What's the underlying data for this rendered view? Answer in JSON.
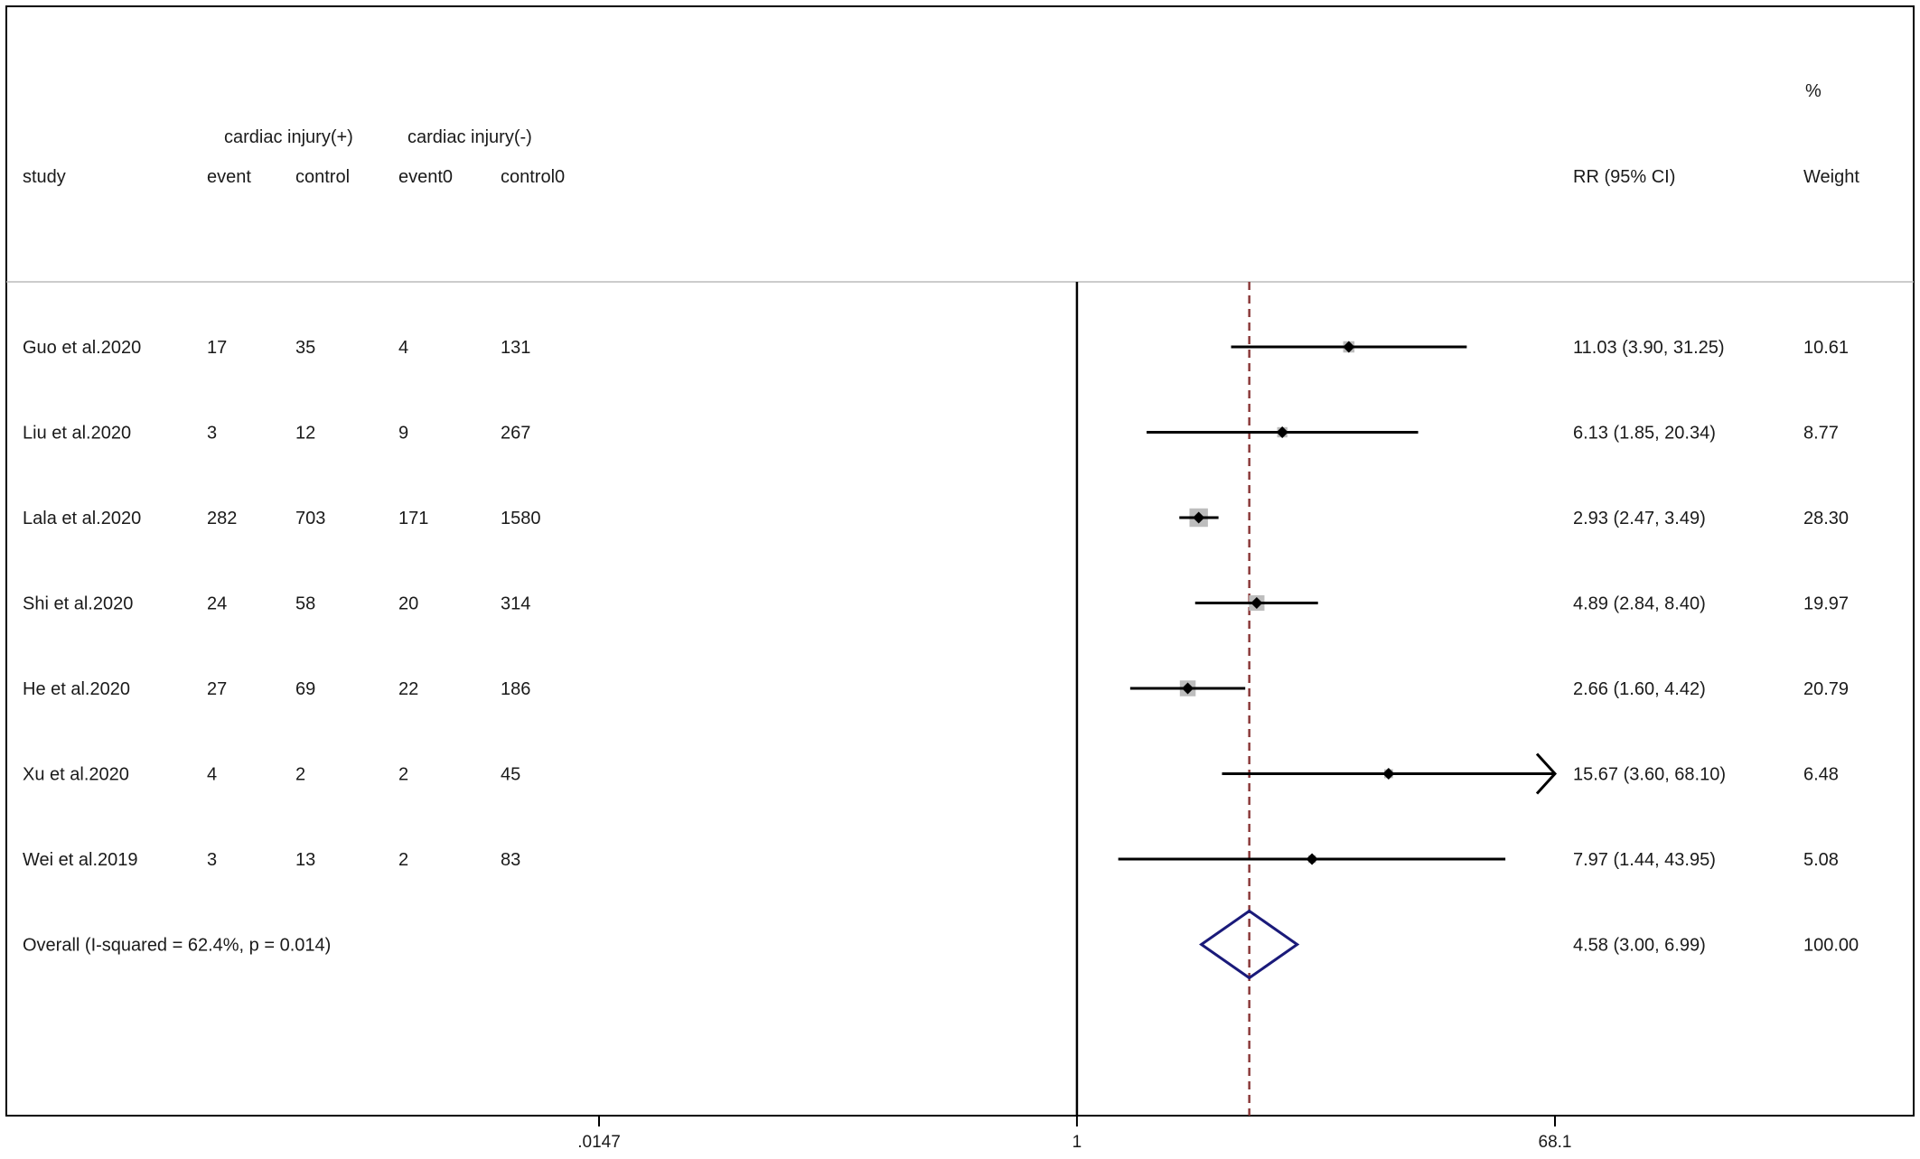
{
  "chart_data": {
    "type": "forest",
    "scale": "log",
    "x_range": [
      0.0147,
      68.1
    ],
    "x_ticks": [
      {
        "value": 0.0147,
        "label": ".0147"
      },
      {
        "value": 1,
        "label": "1"
      },
      {
        "value": 68.1,
        "label": "68.1"
      }
    ],
    "null_line": 1,
    "overall_line": 4.58,
    "headers": {
      "group_pos": "cardiac injury(+)",
      "group_neg": "cardiac injury(-)",
      "study": "study",
      "event": "event",
      "control": "control",
      "event0": "event0",
      "control0": "control0",
      "rr": "RR (95% CI)",
      "pct": "%",
      "weight": "Weight"
    },
    "studies": [
      {
        "study": "Guo et al.2020",
        "event": "17",
        "control": "35",
        "event0": "4",
        "control0": "131",
        "rr": 11.03,
        "lo": 3.9,
        "hi": 31.25,
        "rr_text": "11.03 (3.90, 31.25)",
        "weight": 10.61,
        "weight_text": "10.61"
      },
      {
        "study": "Liu et al.2020",
        "event": "3",
        "control": "12",
        "event0": "9",
        "control0": "267",
        "rr": 6.13,
        "lo": 1.85,
        "hi": 20.34,
        "rr_text": "6.13 (1.85, 20.34)",
        "weight": 8.77,
        "weight_text": "8.77"
      },
      {
        "study": "Lala et al.2020",
        "event": "282",
        "control": "703",
        "event0": "171",
        "control0": "1580",
        "rr": 2.93,
        "lo": 2.47,
        "hi": 3.49,
        "rr_text": "2.93 (2.47, 3.49)",
        "weight": 28.3,
        "weight_text": "28.30"
      },
      {
        "study": "Shi et al.2020",
        "event": "24",
        "control": "58",
        "event0": "20",
        "control0": "314",
        "rr": 4.89,
        "lo": 2.84,
        "hi": 8.4,
        "rr_text": "4.89 (2.84, 8.40)",
        "weight": 19.97,
        "weight_text": "19.97"
      },
      {
        "study": "He et al.2020",
        "event": "27",
        "control": "69",
        "event0": "22",
        "control0": "186",
        "rr": 2.66,
        "lo": 1.6,
        "hi": 4.42,
        "rr_text": "2.66 (1.60, 4.42)",
        "weight": 20.79,
        "weight_text": "20.79"
      },
      {
        "study": "Xu et al.2020",
        "event": "4",
        "control": "2",
        "event0": "2",
        "control0": "45",
        "rr": 15.67,
        "lo": 3.6,
        "hi": 68.1,
        "rr_text": "15.67 (3.60, 68.10)",
        "weight": 6.48,
        "weight_text": "6.48"
      },
      {
        "study": "Wei et al.2019",
        "event": "3",
        "control": "13",
        "event0": "2",
        "control0": "83",
        "rr": 7.97,
        "lo": 1.44,
        "hi": 43.95,
        "rr_text": "7.97 (1.44, 43.95)",
        "weight": 5.08,
        "weight_text": "5.08"
      }
    ],
    "overall": {
      "label": "Overall  (I-squared = 62.4%, p = 0.014)",
      "rr": 4.58,
      "lo": 3.0,
      "hi": 6.99,
      "rr_text": "4.58 (3.00, 6.99)",
      "weight_text": "100.00"
    },
    "colors": {
      "box": "#bdbdbd",
      "ci_line": "#000000",
      "overall_diamond": "#1a1a7a",
      "overall_line": "#8b3a3a"
    }
  }
}
